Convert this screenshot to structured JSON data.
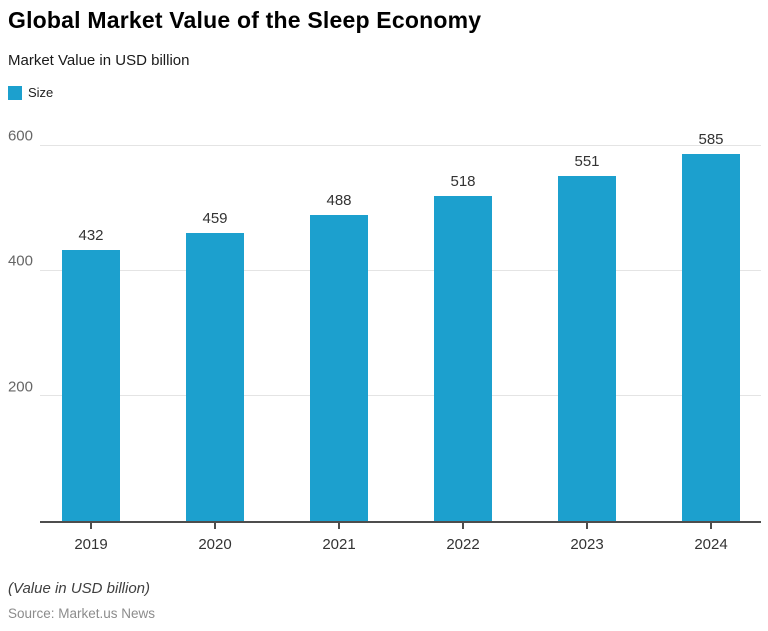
{
  "header": {
    "title": "Global Market Value of the Sleep Economy",
    "subtitle": "Market Value in USD billion"
  },
  "legend": {
    "items": [
      {
        "label": "Size",
        "color": "#1CA0CE"
      }
    ]
  },
  "chart_data": {
    "type": "bar",
    "title": "Global Market Value of the Sleep Economy",
    "subtitle": "Market Value in USD billion",
    "categories": [
      "2019",
      "2020",
      "2021",
      "2022",
      "2023",
      "2024"
    ],
    "series": [
      {
        "name": "Size",
        "values": [
          432,
          459,
          488,
          518,
          551,
          585
        ],
        "color": "#1CA0CE"
      }
    ],
    "xlabel": "",
    "ylabel": "Market Value in USD billion",
    "ylim": [
      0,
      600
    ],
    "yticks": [
      200,
      400,
      600
    ],
    "grid": "horizontal",
    "legend_position": "top-left",
    "data_labels": true,
    "colors": {
      "bar": "#1CA0CE",
      "gridline": "#e4e4e4",
      "axis_line": "#4d4d4d",
      "y_tick_label": "#666666",
      "x_tick_label": "#333333",
      "data_label": "#333333"
    }
  },
  "footer": {
    "note": "(Value in USD billion)",
    "source": "Source: Market.us News"
  }
}
